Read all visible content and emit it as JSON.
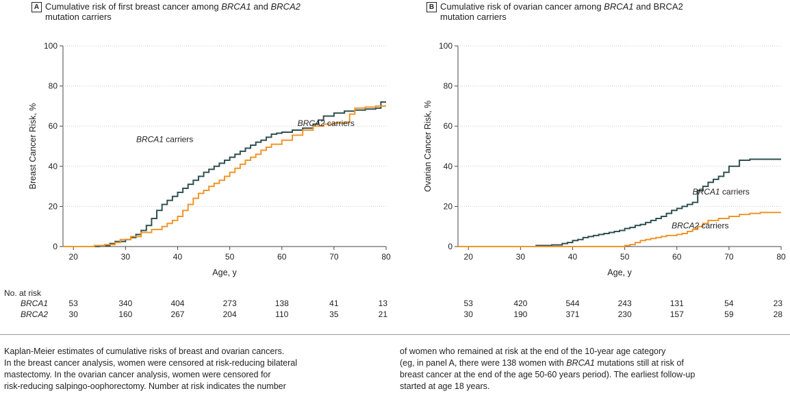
{
  "chart_data": [
    {
      "type": "line",
      "step": true,
      "panel": "A",
      "title_part1": "Cumulative risk of first breast cancer among ",
      "title_g1": "BRCA1",
      "title_part2": " and ",
      "title_g2": "BRCA2",
      "title_line2": "mutation carriers",
      "xlabel": "Age, y",
      "ylabel": "Breast Cancer Risk, %",
      "xlim": [
        18,
        80
      ],
      "ylim": [
        0,
        100
      ],
      "xticks": [
        20,
        30,
        40,
        50,
        60,
        70,
        80
      ],
      "yticks": [
        0,
        20,
        40,
        60,
        80,
        100
      ],
      "series": [
        {
          "name": "BRCA1 carriers",
          "color": "#2f4f4f",
          "x": [
            18,
            25,
            27,
            28,
            30,
            31,
            32,
            33,
            34,
            35,
            36,
            37,
            38,
            39,
            40,
            41,
            42,
            43,
            44,
            45,
            46,
            47,
            48,
            49,
            50,
            51,
            52,
            53,
            54,
            55,
            56,
            57,
            58,
            59,
            60,
            62,
            64,
            66,
            67,
            68,
            70,
            72,
            74,
            76,
            78,
            79,
            80
          ],
          "y": [
            0,
            0.5,
            1.5,
            2.5,
            3.5,
            4.5,
            6,
            8,
            10.5,
            14,
            18,
            21,
            23,
            25,
            27,
            29,
            31,
            33,
            35,
            37,
            38.5,
            40,
            41.5,
            43,
            44.5,
            46,
            47.5,
            49,
            50.5,
            52,
            53,
            54.5,
            56,
            56.5,
            57,
            58,
            59,
            61,
            63,
            65,
            66.5,
            67.5,
            68,
            68.5,
            69,
            72,
            72
          ]
        },
        {
          "name": "BRCA2 carriers",
          "color": "#f0952a",
          "x": [
            18,
            24,
            26,
            28,
            29,
            31,
            33,
            35,
            37,
            38,
            39,
            40,
            41,
            42,
            43,
            44,
            45,
            46,
            47,
            48,
            49,
            50,
            51,
            52,
            53,
            54,
            55,
            56,
            57,
            58,
            60,
            62,
            64,
            66,
            68,
            70,
            72,
            73,
            74,
            76,
            78,
            80
          ],
          "y": [
            0,
            0.5,
            1,
            2,
            3.5,
            5,
            7,
            8.5,
            10,
            11.5,
            13,
            15,
            18,
            21,
            24,
            26.5,
            28,
            30,
            31.5,
            33,
            35,
            37,
            39,
            41,
            43,
            44.5,
            46,
            48,
            49.5,
            51,
            53,
            55.5,
            58,
            60,
            61,
            61.5,
            62,
            66,
            69,
            69.5,
            70,
            70
          ]
        }
      ],
      "label_g1": "BRCA1",
      "label_g2": "BRCA2",
      "label_suffix": " carriers",
      "at_risk": {
        "heading": "No. at risk",
        "BRCA1": [
          "53",
          "340",
          "404",
          "273",
          "138",
          "41",
          "13"
        ],
        "BRCA2": [
          "30",
          "160",
          "267",
          "204",
          "110",
          "35",
          "21"
        ]
      }
    },
    {
      "type": "line",
      "step": true,
      "panel": "B",
      "title_part1": "Cumulative risk of ovarian cancer among ",
      "title_g1": "BRCA1",
      "title_part2": " and BRCA2",
      "title_g2": "",
      "title_line2": "mutation carriers",
      "xlabel": "Age, y",
      "ylabel": "Ovarian Cancer Risk, %",
      "xlim": [
        18,
        80
      ],
      "ylim": [
        0,
        100
      ],
      "xticks": [
        20,
        30,
        40,
        50,
        60,
        70,
        80
      ],
      "yticks": [
        0,
        20,
        40,
        60,
        80,
        100
      ],
      "series": [
        {
          "name": "BRCA1 carriers",
          "color": "#2f4f4f",
          "x": [
            18,
            33,
            36,
            38,
            39,
            40,
            41,
            42,
            43,
            44,
            45,
            46,
            47,
            48,
            49,
            50,
            51,
            52,
            53,
            54,
            55,
            56,
            57,
            58,
            59,
            60,
            61,
            62,
            63,
            64,
            65,
            66,
            67,
            68,
            69,
            70,
            72,
            74,
            76,
            78,
            80
          ],
          "y": [
            0,
            0.5,
            0.8,
            1.5,
            2,
            3,
            3.5,
            4.5,
            5,
            5.5,
            6,
            6.5,
            7,
            7.5,
            8,
            9,
            9.5,
            10.5,
            11,
            12,
            13,
            14,
            15,
            16.5,
            18,
            19,
            20,
            21,
            22,
            28,
            30,
            32,
            33.5,
            35,
            37,
            40,
            43,
            43.5,
            43.5,
            43.5,
            43.5
          ]
        },
        {
          "name": "BRCA2 carriers",
          "color": "#f0952a",
          "x": [
            18,
            50,
            51,
            52,
            53,
            54,
            55,
            56,
            57,
            58,
            60,
            61,
            62,
            63,
            64,
            65,
            66,
            68,
            70,
            72,
            74,
            76,
            78,
            80
          ],
          "y": [
            0,
            0.5,
            1,
            2,
            3,
            3.5,
            4,
            4.5,
            5,
            5.5,
            6,
            6.5,
            7.5,
            8.5,
            10,
            11.5,
            13,
            14,
            15,
            16,
            16.5,
            17,
            17,
            17
          ]
        }
      ],
      "label_g1": "BRCA1",
      "label_g2": "BRCA2",
      "label_suffix": " carriers",
      "at_risk": {
        "BRCA1": [
          "53",
          "420",
          "544",
          "243",
          "131",
          "54",
          "23"
        ],
        "BRCA2": [
          "30",
          "190",
          "371",
          "230",
          "157",
          "59",
          "28"
        ]
      }
    }
  ],
  "risk_row_labels": [
    "BRCA1",
    "BRCA2"
  ],
  "caption": {
    "left": [
      "Kaplan-Meier estimates of cumulative risks of breast and ovarian cancers.",
      "In the breast cancer analysis, women were censored at risk-reducing bilateral",
      "mastectomy. In the ovarian cancer analysis, women were censored for",
      "risk-reducing salpingo-oophorectomy. Number at risk indicates the number"
    ],
    "right_1": "of women who remained at risk at the end of the 10-year age category",
    "right_2a": "(eg, in panel A, there were 138 women with ",
    "right_2g": "BRCA1",
    "right_2b": " mutations still at risk of",
    "right_3": "breast cancer at the end of the age 50-60 years period). The earliest follow-up",
    "right_4": "started at age 18 years."
  }
}
